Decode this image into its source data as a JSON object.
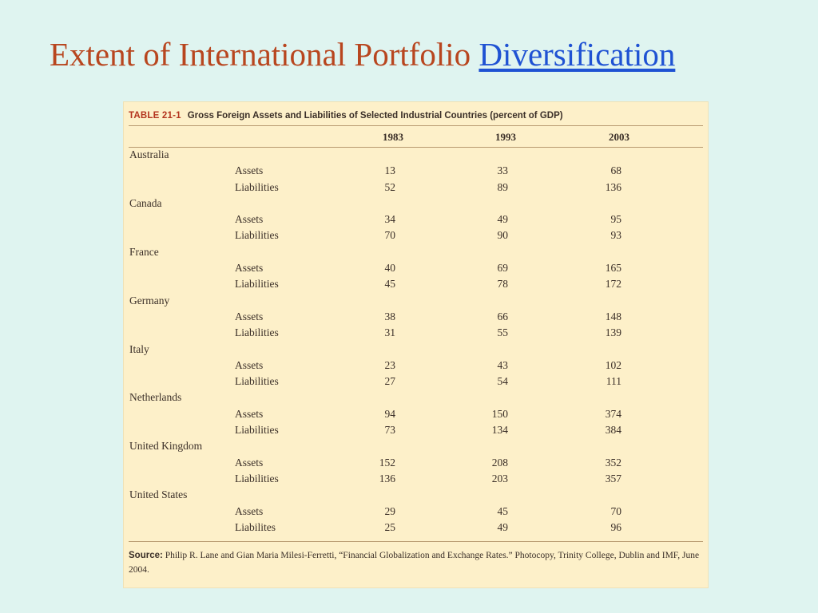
{
  "slide": {
    "title_plain": "Extent of International Portfolio ",
    "title_link": "Diversification"
  },
  "table": {
    "number": "TABLE 21-1",
    "caption": "Gross Foreign Assets and Liabilities of Selected Industrial Countries (percent of GDP)",
    "years": [
      "1983",
      "1993",
      "2003"
    ],
    "rows": [
      {
        "country": "Australia"
      },
      {
        "item": "Assets",
        "v": [
          "13",
          "33",
          "68"
        ]
      },
      {
        "item": "Liabilities",
        "v": [
          "52",
          "89",
          "136"
        ]
      },
      {
        "country": "Canada"
      },
      {
        "item": "Assets",
        "v": [
          "34",
          "49",
          "95"
        ]
      },
      {
        "item": "Liabilities",
        "v": [
          "70",
          "90",
          "93"
        ]
      },
      {
        "country": "France"
      },
      {
        "item": "Assets",
        "v": [
          "40",
          "69",
          "165"
        ]
      },
      {
        "item": "Liabilities",
        "v": [
          "45",
          "78",
          "172"
        ]
      },
      {
        "country": "Germany"
      },
      {
        "item": "Assets",
        "v": [
          "38",
          "66",
          "148"
        ]
      },
      {
        "item": "Liabilities",
        "v": [
          "31",
          "55",
          "139"
        ]
      },
      {
        "country": "Italy"
      },
      {
        "item": "Assets",
        "v": [
          "23",
          "43",
          "102"
        ]
      },
      {
        "item": "Liabilities",
        "v": [
          "27",
          "54",
          "111"
        ]
      },
      {
        "country": "Netherlands"
      },
      {
        "item": "Assets",
        "v": [
          "94",
          "150",
          "374"
        ]
      },
      {
        "item": "Liabilities",
        "v": [
          "73",
          "134",
          "384"
        ]
      },
      {
        "country": "United Kingdom"
      },
      {
        "item": "Assets",
        "v": [
          "152",
          "208",
          "352"
        ]
      },
      {
        "item": "Liabilities",
        "v": [
          "136",
          "203",
          "357"
        ]
      },
      {
        "country": "United States"
      },
      {
        "item": "Assets",
        "v": [
          "29",
          "45",
          "70"
        ]
      },
      {
        "item": "Liabilites",
        "v": [
          "25",
          "49",
          "96"
        ]
      }
    ],
    "source_label": "Source:",
    "source_text": "Philip R. Lane and Gian Maria Milesi-Ferretti, “Financial Globalization and Exchange Rates.” Photocopy, Trinity College, Dublin and IMF, June 2004."
  },
  "colors": {
    "background": "#dff4f0",
    "title": "#b8461f",
    "link": "#1f52d3",
    "table_bg": "#fdf0c9",
    "table_number": "#b3341e"
  }
}
